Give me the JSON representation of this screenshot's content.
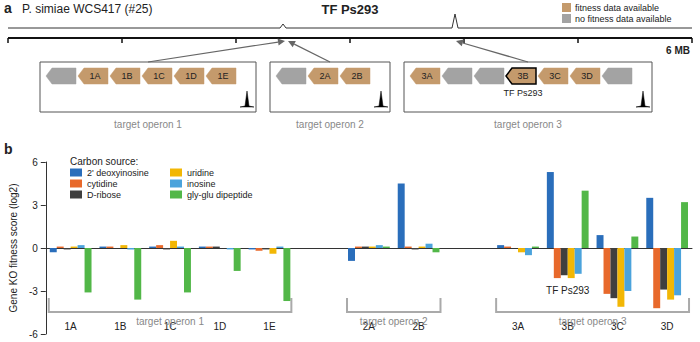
{
  "panel_labels": [
    "a",
    "b"
  ],
  "genome": {
    "title": "P. simiae WCS417 (#25)",
    "tf": "TF Ps293",
    "scale_label": "6 MB",
    "legend": [
      {
        "name": "fitness data available",
        "color": "#c49a6c"
      },
      {
        "name": "no fitness data available",
        "color": "#a3a3a3"
      }
    ],
    "operons": [
      {
        "label": "target operon 1",
        "genes": [
          {
            "name": null,
            "fitness": false
          },
          {
            "name": "1A",
            "fitness": true
          },
          {
            "name": "1B",
            "fitness": true
          },
          {
            "name": "1C",
            "fitness": true
          },
          {
            "name": "1D",
            "fitness": true
          },
          {
            "name": "1E",
            "fitness": true
          }
        ]
      },
      {
        "label": "target operon 2",
        "genes": [
          {
            "name": null,
            "fitness": false
          },
          {
            "name": "2A",
            "fitness": true
          },
          {
            "name": "2B",
            "fitness": true
          }
        ]
      },
      {
        "label": "target operon 3",
        "genes": [
          {
            "name": "3A",
            "fitness": true
          },
          {
            "name": null,
            "fitness": false
          },
          {
            "name": null,
            "fitness": false
          },
          {
            "name": "3B",
            "fitness": true,
            "label": "TF Ps293"
          },
          {
            "name": "3C",
            "fitness": true
          },
          {
            "name": "3D",
            "fitness": true
          },
          {
            "name": null,
            "fitness": false
          }
        ]
      }
    ]
  },
  "chart_data": {
    "type": "bar",
    "y_label": "Gene KO fitness score (log2)",
    "legend_title": "Carbon source:",
    "legend": "upper left",
    "grid": false,
    "categories": [
      "1A",
      "1B",
      "1C",
      "1D",
      "1E",
      null,
      "2A",
      "2B",
      null,
      "3A",
      "3B",
      "3C",
      "3D"
    ],
    "series": [
      {
        "name": "2' deoxyinosine",
        "color": "#2a6ebb",
        "values": [
          -0.3,
          0.1,
          0.1,
          0.1,
          -0.1,
          null,
          -0.9,
          4.5,
          null,
          0.2,
          5.3,
          0.9,
          3.5
        ]
      },
      {
        "name": "cytidine",
        "color": "#e8692b",
        "values": [
          0.1,
          0.1,
          0.2,
          0.1,
          -0.2,
          null,
          0.1,
          0.1,
          null,
          0.1,
          -2.1,
          -3.2,
          -4.2
        ]
      },
      {
        "name": "D-ribose",
        "color": "#3f3f3f",
        "values": [
          -0.1,
          0.0,
          -0.1,
          0.1,
          -0.1,
          null,
          0.1,
          -0.1,
          null,
          0.0,
          -1.9,
          -3.5,
          -2.9
        ]
      },
      {
        "name": "uridine",
        "color": "#f2b705",
        "values": [
          0.1,
          0.2,
          0.5,
          0.0,
          -0.4,
          null,
          0.1,
          0.1,
          null,
          -0.3,
          -2.1,
          -4.1,
          -3.6
        ]
      },
      {
        "name": "inosine",
        "color": "#4ba3dc",
        "values": [
          0.2,
          -0.1,
          0.1,
          -0.1,
          0.1,
          null,
          0.2,
          0.3,
          null,
          -0.5,
          -1.8,
          -3.0,
          -3.3
        ]
      },
      {
        "name": "gly-glu dipeptide",
        "color": "#52b748",
        "values": [
          -3.1,
          -3.6,
          -3.1,
          -1.6,
          -3.7,
          null,
          0.1,
          -0.3,
          null,
          0.1,
          4.0,
          0.8,
          3.2
        ]
      }
    ],
    "ylim": [
      -6,
      6
    ],
    "yticks": [
      -6,
      -3,
      0,
      3,
      6
    ],
    "annotations": [
      {
        "text": "TF Ps293",
        "category": "3B"
      }
    ],
    "groups": [
      {
        "label": "target operon 1",
        "from": "1A",
        "to": "1E"
      },
      {
        "label": "target operon 2",
        "from": "2A",
        "to": "2B"
      },
      {
        "label": "target operon 3",
        "from": "3A",
        "to": "3D"
      }
    ]
  }
}
